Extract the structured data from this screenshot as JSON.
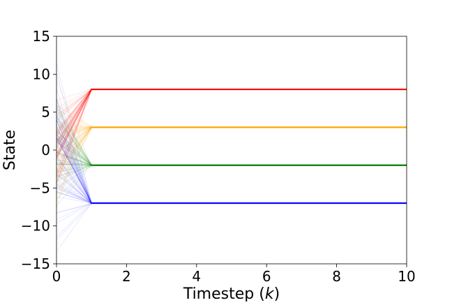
{
  "chart_data": {
    "type": "line",
    "title": "",
    "xlabel": "Timestep",
    "xlabel_var": "k",
    "ylabel": "State",
    "xlim": [
      0,
      10
    ],
    "ylim": [
      -15,
      15
    ],
    "xticks": [
      0,
      2,
      4,
      6,
      8,
      10
    ],
    "yticks": [
      -15,
      -10,
      -5,
      0,
      5,
      10,
      15
    ],
    "xtick_labels": [
      "0",
      "2",
      "4",
      "6",
      "8",
      "10"
    ],
    "ytick_labels": [
      "−15",
      "−10",
      "−5",
      "0",
      "5",
      "10",
      "15"
    ],
    "grid": false,
    "legend": "none",
    "series": [
      {
        "color": "#ff0000",
        "x": [
          0,
          1,
          2,
          3,
          4,
          5,
          6,
          7,
          8,
          9,
          10
        ],
        "values": [
          0,
          8,
          8,
          8,
          8,
          8,
          8,
          8,
          8,
          8,
          8
        ],
        "initial_spread": [
          -10,
          10
        ]
      },
      {
        "color": "#ffa500",
        "x": [
          0,
          1,
          2,
          3,
          4,
          5,
          6,
          7,
          8,
          9,
          10
        ],
        "values": [
          0,
          3,
          3,
          3,
          3,
          3,
          3,
          3,
          3,
          3,
          3
        ],
        "initial_spread": [
          -10,
          10
        ]
      },
      {
        "color": "#008000",
        "x": [
          0,
          1,
          2,
          3,
          4,
          5,
          6,
          7,
          8,
          9,
          10
        ],
        "values": [
          0,
          -2,
          -2,
          -2,
          -2,
          -2,
          -2,
          -2,
          -2,
          -2,
          -2
        ],
        "initial_spread": [
          -10,
          10
        ]
      },
      {
        "color": "#0000ff",
        "x": [
          0,
          1,
          2,
          3,
          4,
          5,
          6,
          7,
          8,
          9,
          10
        ],
        "values": [
          0,
          -7,
          -7,
          -7,
          -7,
          -7,
          -7,
          -7,
          -7,
          -7,
          -7
        ],
        "initial_spread": [
          -15,
          15
        ]
      }
    ]
  }
}
